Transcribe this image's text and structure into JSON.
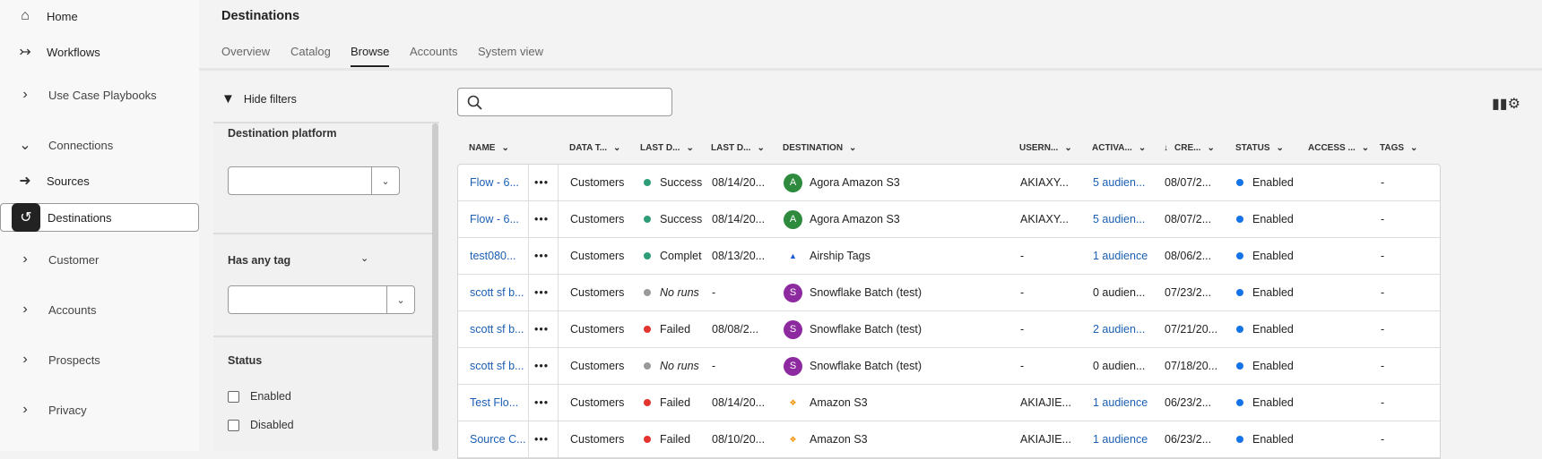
{
  "sidebar": {
    "items": [
      {
        "label": "Home",
        "icon": "home-icon"
      },
      {
        "label": "Workflows",
        "icon": "workflows-icon"
      },
      {
        "label": "Use Case Playbooks",
        "icon": "chevron-right-icon"
      },
      {
        "label": "Connections",
        "icon": "chevron-down-icon"
      },
      {
        "label": "Sources",
        "icon": "sources-icon"
      },
      {
        "label": "Destinations",
        "icon": "destinations-icon",
        "selected": true
      },
      {
        "label": "Customer",
        "icon": "chevron-right-icon"
      },
      {
        "label": "Accounts",
        "icon": "chevron-right-icon"
      },
      {
        "label": "Prospects",
        "icon": "chevron-right-icon"
      },
      {
        "label": "Privacy",
        "icon": "chevron-right-icon"
      }
    ]
  },
  "header": {
    "title": "Destinations",
    "tabs": [
      "Overview",
      "Catalog",
      "Browse",
      "Accounts",
      "System view"
    ],
    "active_tab": "Browse"
  },
  "filters": {
    "toggle_label": "Hide filters",
    "destination_platform": {
      "label": "Destination platform",
      "value": ""
    },
    "has_any_tag": {
      "label": "Has any tag",
      "value": ""
    },
    "status": {
      "label": "Status",
      "options": [
        {
          "label": "Enabled",
          "checked": false
        },
        {
          "label": "Disabled",
          "checked": false
        }
      ]
    }
  },
  "search": {
    "value": "",
    "placeholder": ""
  },
  "table": {
    "columns": [
      "NAME",
      "DATA T...",
      "LAST D...",
      "LAST D...",
      "DESTINATION",
      "USERN...",
      "ACTIVA...",
      "CRE...",
      "STATUS",
      "ACCESS ...",
      "TAGS"
    ],
    "sorted_column": "CRE...",
    "rows": [
      {
        "name": "Flow - 6...",
        "data_type": "Customers",
        "last_status": "Success",
        "last_status_color": "#2d9d78",
        "last_date": "08/14/20...",
        "destination": "Agora Amazon S3",
        "dest_logo": "A",
        "dest_color": "#2e8b3e",
        "username": "AKIAXY...",
        "activation": "5 audien...",
        "activation_link": true,
        "created": "08/07/2...",
        "status": "Enabled",
        "access": "",
        "tags": "-"
      },
      {
        "name": "Flow - 6...",
        "data_type": "Customers",
        "last_status": "Success",
        "last_status_color": "#2d9d78",
        "last_date": "08/14/20...",
        "destination": "Agora Amazon S3",
        "dest_logo": "A",
        "dest_color": "#2e8b3e",
        "username": "AKIAXY...",
        "activation": "5 audien...",
        "activation_link": true,
        "created": "08/07/2...",
        "status": "Enabled",
        "access": "",
        "tags": "-"
      },
      {
        "name": "test080...",
        "data_type": "Customers",
        "last_status": "Complet",
        "last_status_color": "#2d9d78",
        "last_date": "08/13/20...",
        "destination": "Airship Tags",
        "dest_logo": "AIRSHIP",
        "dest_color": "#1e5bd8",
        "username": "-",
        "activation": "1 audience",
        "activation_link": true,
        "created": "08/06/2...",
        "status": "Enabled",
        "access": "",
        "tags": "-"
      },
      {
        "name": "scott sf b...",
        "data_type": "Customers",
        "last_status": "No runs",
        "last_status_italic": true,
        "last_status_color": "#999999",
        "last_date": "-",
        "destination": "Snowflake Batch (test)",
        "dest_logo": "S",
        "dest_color": "#8e2aa0",
        "username": "-",
        "activation": "0 audien...",
        "activation_link": false,
        "created": "07/23/2...",
        "status": "Enabled",
        "access": "",
        "tags": "-"
      },
      {
        "name": "scott sf b...",
        "data_type": "Customers",
        "last_status": "Failed",
        "last_status_color": "#e3342f",
        "last_date": "08/08/2...",
        "destination": "Snowflake Batch (test)",
        "dest_logo": "S",
        "dest_color": "#8e2aa0",
        "username": "-",
        "activation": "2 audien...",
        "activation_link": true,
        "created": "07/21/20...",
        "status": "Enabled",
        "access": "",
        "tags": "-"
      },
      {
        "name": "scott sf b...",
        "data_type": "Customers",
        "last_status": "No runs",
        "last_status_italic": true,
        "last_status_color": "#999999",
        "last_date": "-",
        "destination": "Snowflake Batch (test)",
        "dest_logo": "S",
        "dest_color": "#8e2aa0",
        "username": "-",
        "activation": "0 audien...",
        "activation_link": false,
        "created": "07/18/20...",
        "status": "Enabled",
        "access": "",
        "tags": "-"
      },
      {
        "name": "Test Flo...",
        "data_type": "Customers",
        "last_status": "Failed",
        "last_status_color": "#e3342f",
        "last_date": "08/14/20...",
        "destination": "Amazon S3",
        "dest_logo": "S3",
        "dest_color": "#f29100",
        "username": "AKIAJIE...",
        "activation": "1 audience",
        "activation_link": true,
        "created": "06/23/2...",
        "status": "Enabled",
        "access": "",
        "tags": "-"
      },
      {
        "name": "Source C...",
        "data_type": "Customers",
        "last_status": "Failed",
        "last_status_color": "#e3342f",
        "last_date": "08/10/20...",
        "destination": "Amazon S3",
        "dest_logo": "S3",
        "dest_color": "#f29100",
        "username": "AKIAJIE...",
        "activation": "1 audience",
        "activation_link": true,
        "created": "06/23/2...",
        "status": "Enabled",
        "access": "",
        "tags": "-"
      }
    ]
  },
  "colors": {
    "enabled": "#1473e6",
    "link": "#1a5fb4"
  }
}
